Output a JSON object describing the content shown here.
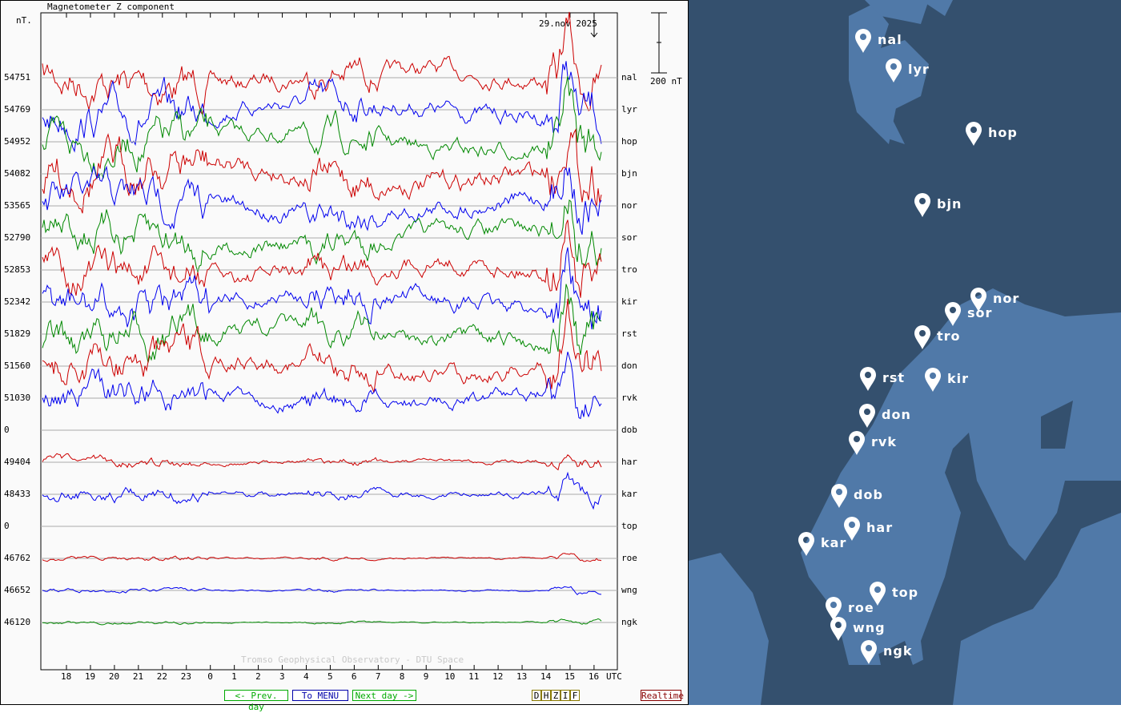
{
  "plot": {
    "title": "Magnetometer Z component",
    "unit": "nT.",
    "date": "29.nov 2025",
    "scale_label": "200 nT",
    "credit": "Tromso Geophysical Observatory - DTU Space",
    "x_ticks": [
      "18",
      "19",
      "20",
      "21",
      "22",
      "23",
      "0",
      "1",
      "2",
      "3",
      "4",
      "5",
      "6",
      "7",
      "8",
      "9",
      "10",
      "11",
      "12",
      "13",
      "14",
      "15",
      "16"
    ],
    "x_unit": "UTC",
    "colors": [
      "#cc0000",
      "#0000ee",
      "#008800"
    ],
    "stations": [
      {
        "code": "nal",
        "value": "54751"
      },
      {
        "code": "lyr",
        "value": "54769"
      },
      {
        "code": "hop",
        "value": "54952"
      },
      {
        "code": "bjn",
        "value": "54082"
      },
      {
        "code": "nor",
        "value": "53565"
      },
      {
        "code": "sor",
        "value": "52790"
      },
      {
        "code": "tro",
        "value": "52853"
      },
      {
        "code": "kir",
        "value": "52342"
      },
      {
        "code": "rst",
        "value": "51829"
      },
      {
        "code": "don",
        "value": "51560"
      },
      {
        "code": "rvk",
        "value": "51030"
      },
      {
        "code": "dob",
        "value": "0"
      },
      {
        "code": "har",
        "value": "49404"
      },
      {
        "code": "kar",
        "value": "48433"
      },
      {
        "code": "top",
        "value": "0"
      },
      {
        "code": "roe",
        "value": "46762"
      },
      {
        "code": "wng",
        "value": "46652"
      },
      {
        "code": "ngk",
        "value": "46120"
      }
    ]
  },
  "nav": {
    "prev": "<- Prev. day",
    "menu": "To MENU",
    "next": "Next day ->",
    "components": [
      "D",
      "H",
      "Z",
      "I",
      "F"
    ],
    "realtime": "Realtime"
  },
  "map": {
    "sea_color": "#34506e",
    "land_color": "#5079a8",
    "markers": [
      "nal",
      "lyr",
      "hop",
      "bjn",
      "nor",
      "sor",
      "tro",
      "rst",
      "kir",
      "don",
      "rvk",
      "dob",
      "har",
      "kar",
      "top",
      "roe",
      "wng",
      "ngk"
    ]
  }
}
